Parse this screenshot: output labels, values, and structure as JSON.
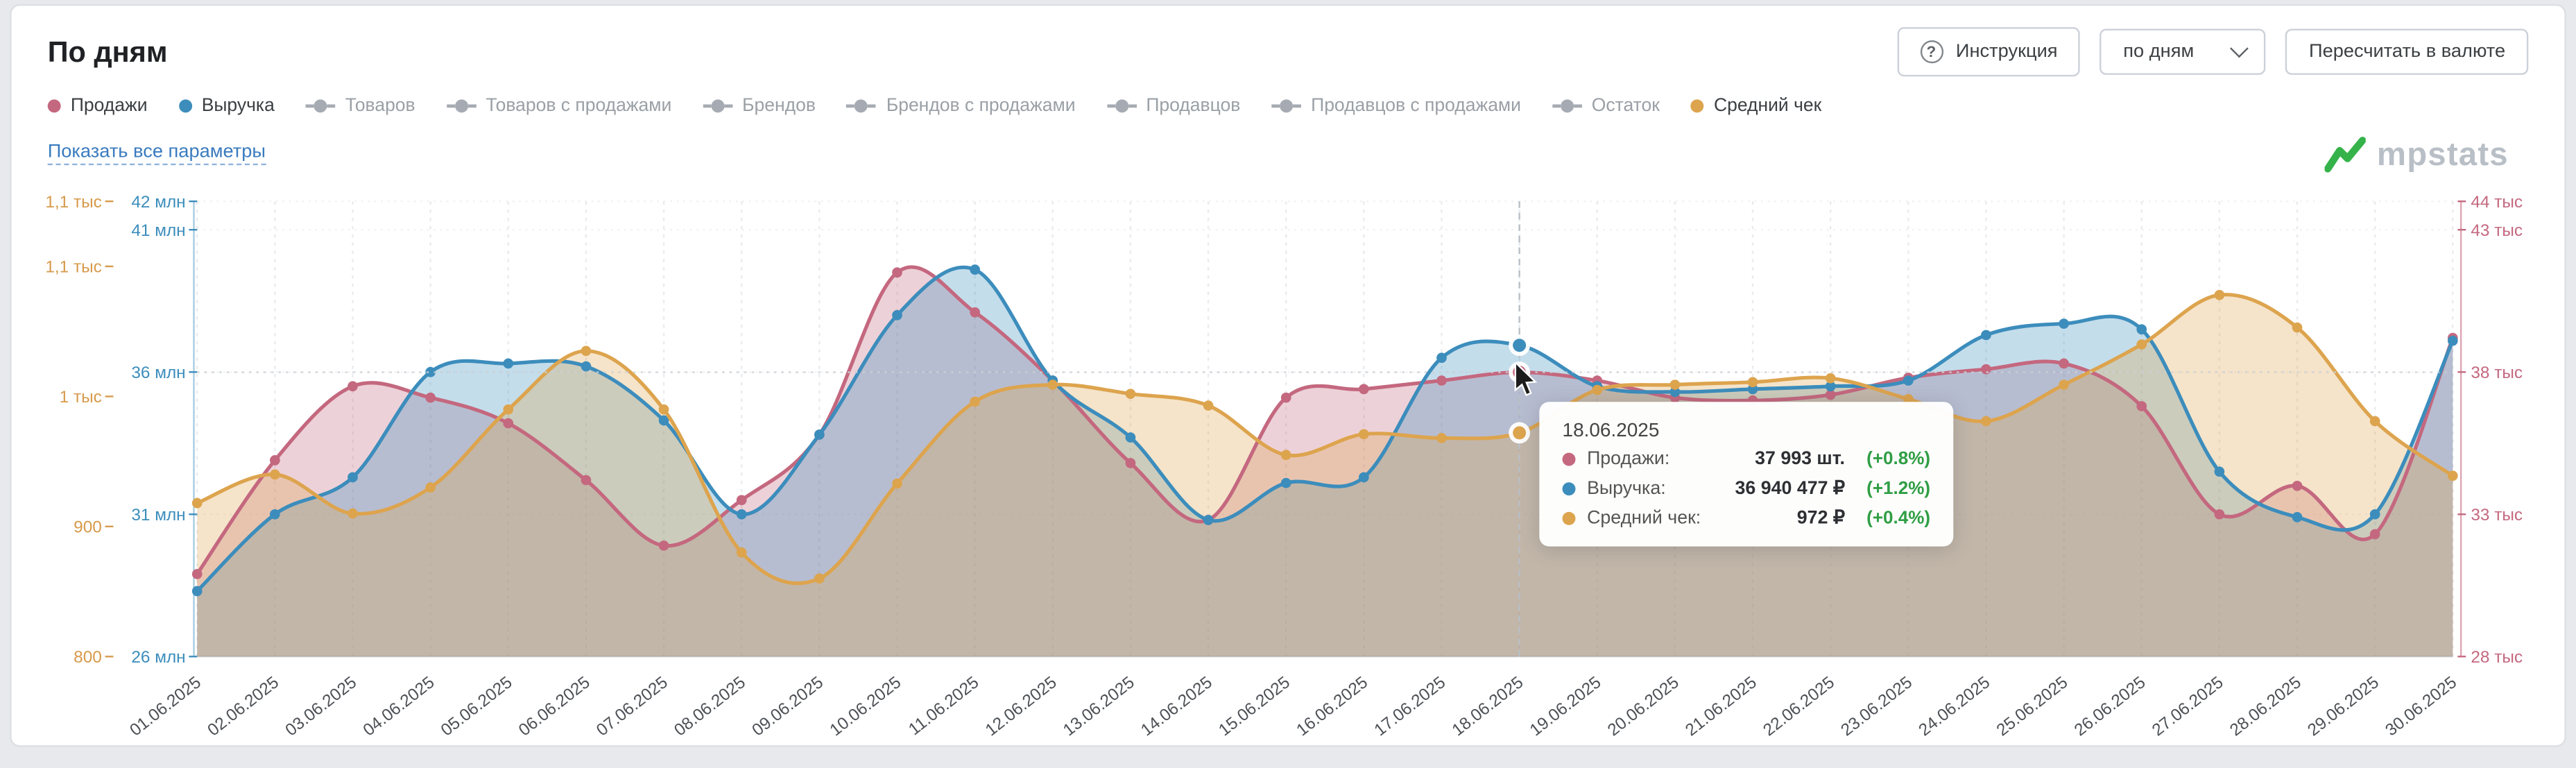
{
  "header": {
    "title": "По дням",
    "instruction": "Инструкция",
    "period": "по дням",
    "recalc": "Пересчитать в валюте"
  },
  "icons": {
    "question": "?"
  },
  "show_all_link": "Показать все параметры",
  "watermark": "mpstats",
  "colors": {
    "sales": "#c4687f",
    "revenue": "#3c8dbc",
    "avg_check": "#dda44e",
    "positive_change": "#2f9e44",
    "disabled_legend": "#a6abb3",
    "brand_green": "#35b34a"
  },
  "legend": {
    "items": [
      {
        "label": "Продажи",
        "color": "#c4687f",
        "active": true
      },
      {
        "label": "Выручка",
        "color": "#3c8dbc",
        "active": true
      },
      {
        "label": "Товаров",
        "active": false
      },
      {
        "label": "Товаров с продажами",
        "active": false
      },
      {
        "label": "Брендов",
        "active": false
      },
      {
        "label": "Брендов с продажами",
        "active": false
      },
      {
        "label": "Продавцов",
        "active": false
      },
      {
        "label": "Продавцов с продажами",
        "active": false
      },
      {
        "label": "Остаток",
        "active": false
      },
      {
        "label": "Средний чек",
        "color": "#dda44e",
        "active": true
      }
    ]
  },
  "tooltip": {
    "date": "18.06.2025",
    "rows": [
      {
        "name": "Продажи:",
        "value": "37 993 шт.",
        "change": "(+0.8%)",
        "color": "#c4687f"
      },
      {
        "name": "Выручка:",
        "value": "36 940 477 ₽",
        "change": "(+1.2%)",
        "color": "#3c8dbc"
      },
      {
        "name": "Средний чек:",
        "value": "972 ₽",
        "change": "(+0.4%)",
        "color": "#dda44e"
      }
    ]
  },
  "chart_data": {
    "type": "area",
    "title": "По дням",
    "x": [
      "01.06.2025",
      "02.06.2025",
      "03.06.2025",
      "04.06.2025",
      "05.06.2025",
      "06.06.2025",
      "07.06.2025",
      "08.06.2025",
      "09.06.2025",
      "10.06.2025",
      "11.06.2025",
      "12.06.2025",
      "13.06.2025",
      "14.06.2025",
      "15.06.2025",
      "16.06.2025",
      "17.06.2025",
      "18.06.2025",
      "19.06.2025",
      "20.06.2025",
      "21.06.2025",
      "22.06.2025",
      "23.06.2025",
      "24.06.2025",
      "25.06.2025",
      "26.06.2025",
      "27.06.2025",
      "28.06.2025",
      "29.06.2025",
      "30.06.2025"
    ],
    "hover_index": 17,
    "series": [
      {
        "name": "Продажи",
        "unit": "тыс. шт.",
        "axis": "right_pink",
        "color": "#c4687f",
        "values": [
          30.9,
          34.9,
          37.5,
          37.1,
          36.2,
          34.2,
          31.9,
          33.5,
          35.8,
          41.5,
          40.1,
          37.7,
          34.8,
          32.8,
          37.1,
          37.4,
          37.7,
          37.993,
          37.7,
          37.1,
          37.0,
          37.2,
          37.8,
          38.1,
          38.3,
          36.8,
          33.0,
          34.0,
          32.3,
          39.2
        ]
      },
      {
        "name": "Выручка",
        "unit": "млн ₽",
        "axis": "left_blue",
        "color": "#3c8dbc",
        "values": [
          28.3,
          31.0,
          32.3,
          36.0,
          36.3,
          36.2,
          34.3,
          31.0,
          33.8,
          38.0,
          39.6,
          35.7,
          33.7,
          30.8,
          32.1,
          32.3,
          36.5,
          36.94,
          35.5,
          35.3,
          35.4,
          35.5,
          35.7,
          37.3,
          37.7,
          37.5,
          32.5,
          30.9,
          31.0,
          37.1
        ]
      },
      {
        "name": "Средний чек",
        "unit": "₽",
        "axis": "left_orange",
        "color": "#dda44e",
        "values": [
          918,
          940,
          910,
          930,
          990,
          1035,
          990,
          880,
          860,
          933,
          996,
          1009,
          1002,
          993,
          955,
          971,
          968,
          972,
          1005,
          1009,
          1011,
          1014,
          998,
          981,
          1009,
          1040,
          1078,
          1053,
          981,
          939
        ]
      }
    ],
    "axes": {
      "left_orange": {
        "ticks": [
          "1,1 тыс",
          "1,1 тыс",
          "1 тыс",
          "900",
          "800"
        ],
        "tick_values": [
          1150,
          1100,
          1000,
          900,
          800
        ],
        "range": [
          800,
          1150
        ],
        "color": "#d79a4b"
      },
      "left_blue": {
        "ticks": [
          "42 млн",
          "41 млн",
          "36 млн",
          "31 млн",
          "26 млн"
        ],
        "tick_values": [
          42,
          41,
          36,
          31,
          26
        ],
        "range": [
          26,
          42
        ],
        "color": "#3c8dbc"
      },
      "right_pink": {
        "ticks": [
          "44 тыс",
          "43 тыс",
          "38 тыс",
          "33 тыс",
          "28 тыс"
        ],
        "tick_values": [
          44,
          43,
          38,
          33,
          28
        ],
        "range": [
          28,
          44
        ],
        "color": "#c4687f"
      }
    },
    "grid": true,
    "legend_position": "top"
  }
}
